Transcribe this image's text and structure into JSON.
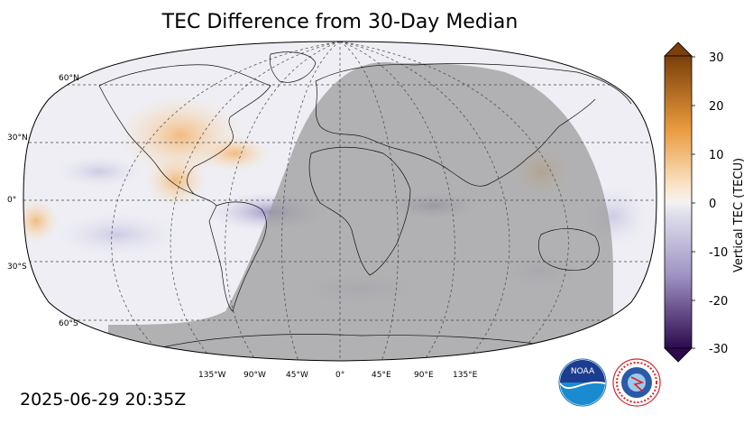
{
  "title": "TEC Difference from 30-Day Median",
  "timestamp": "2025-06-29 20:35Z",
  "map": {
    "lat_labels": [
      "60°N",
      "30°N",
      "0°",
      "30°S",
      "60°S"
    ],
    "lon_labels": [
      "135°W",
      "90°W",
      "45°W",
      "0°",
      "45°E",
      "90°E",
      "135°E"
    ]
  },
  "colorbar": {
    "label": "Vertical TEC (TECU)",
    "ticks": [
      "30",
      "20",
      "10",
      "0",
      "-10",
      "-20",
      "-30"
    ],
    "min": -30,
    "max": 30,
    "colors": {
      "positive_max": "#7a3f0a",
      "positive_mid": "#e99a3c",
      "zero": "#f4f2f2",
      "negative_mid": "#9f93c4",
      "negative_max": "#2d0a4e"
    }
  },
  "logos": {
    "noaa": "NOAA",
    "nws": "NATIONAL WEATHER SERVICE"
  }
}
